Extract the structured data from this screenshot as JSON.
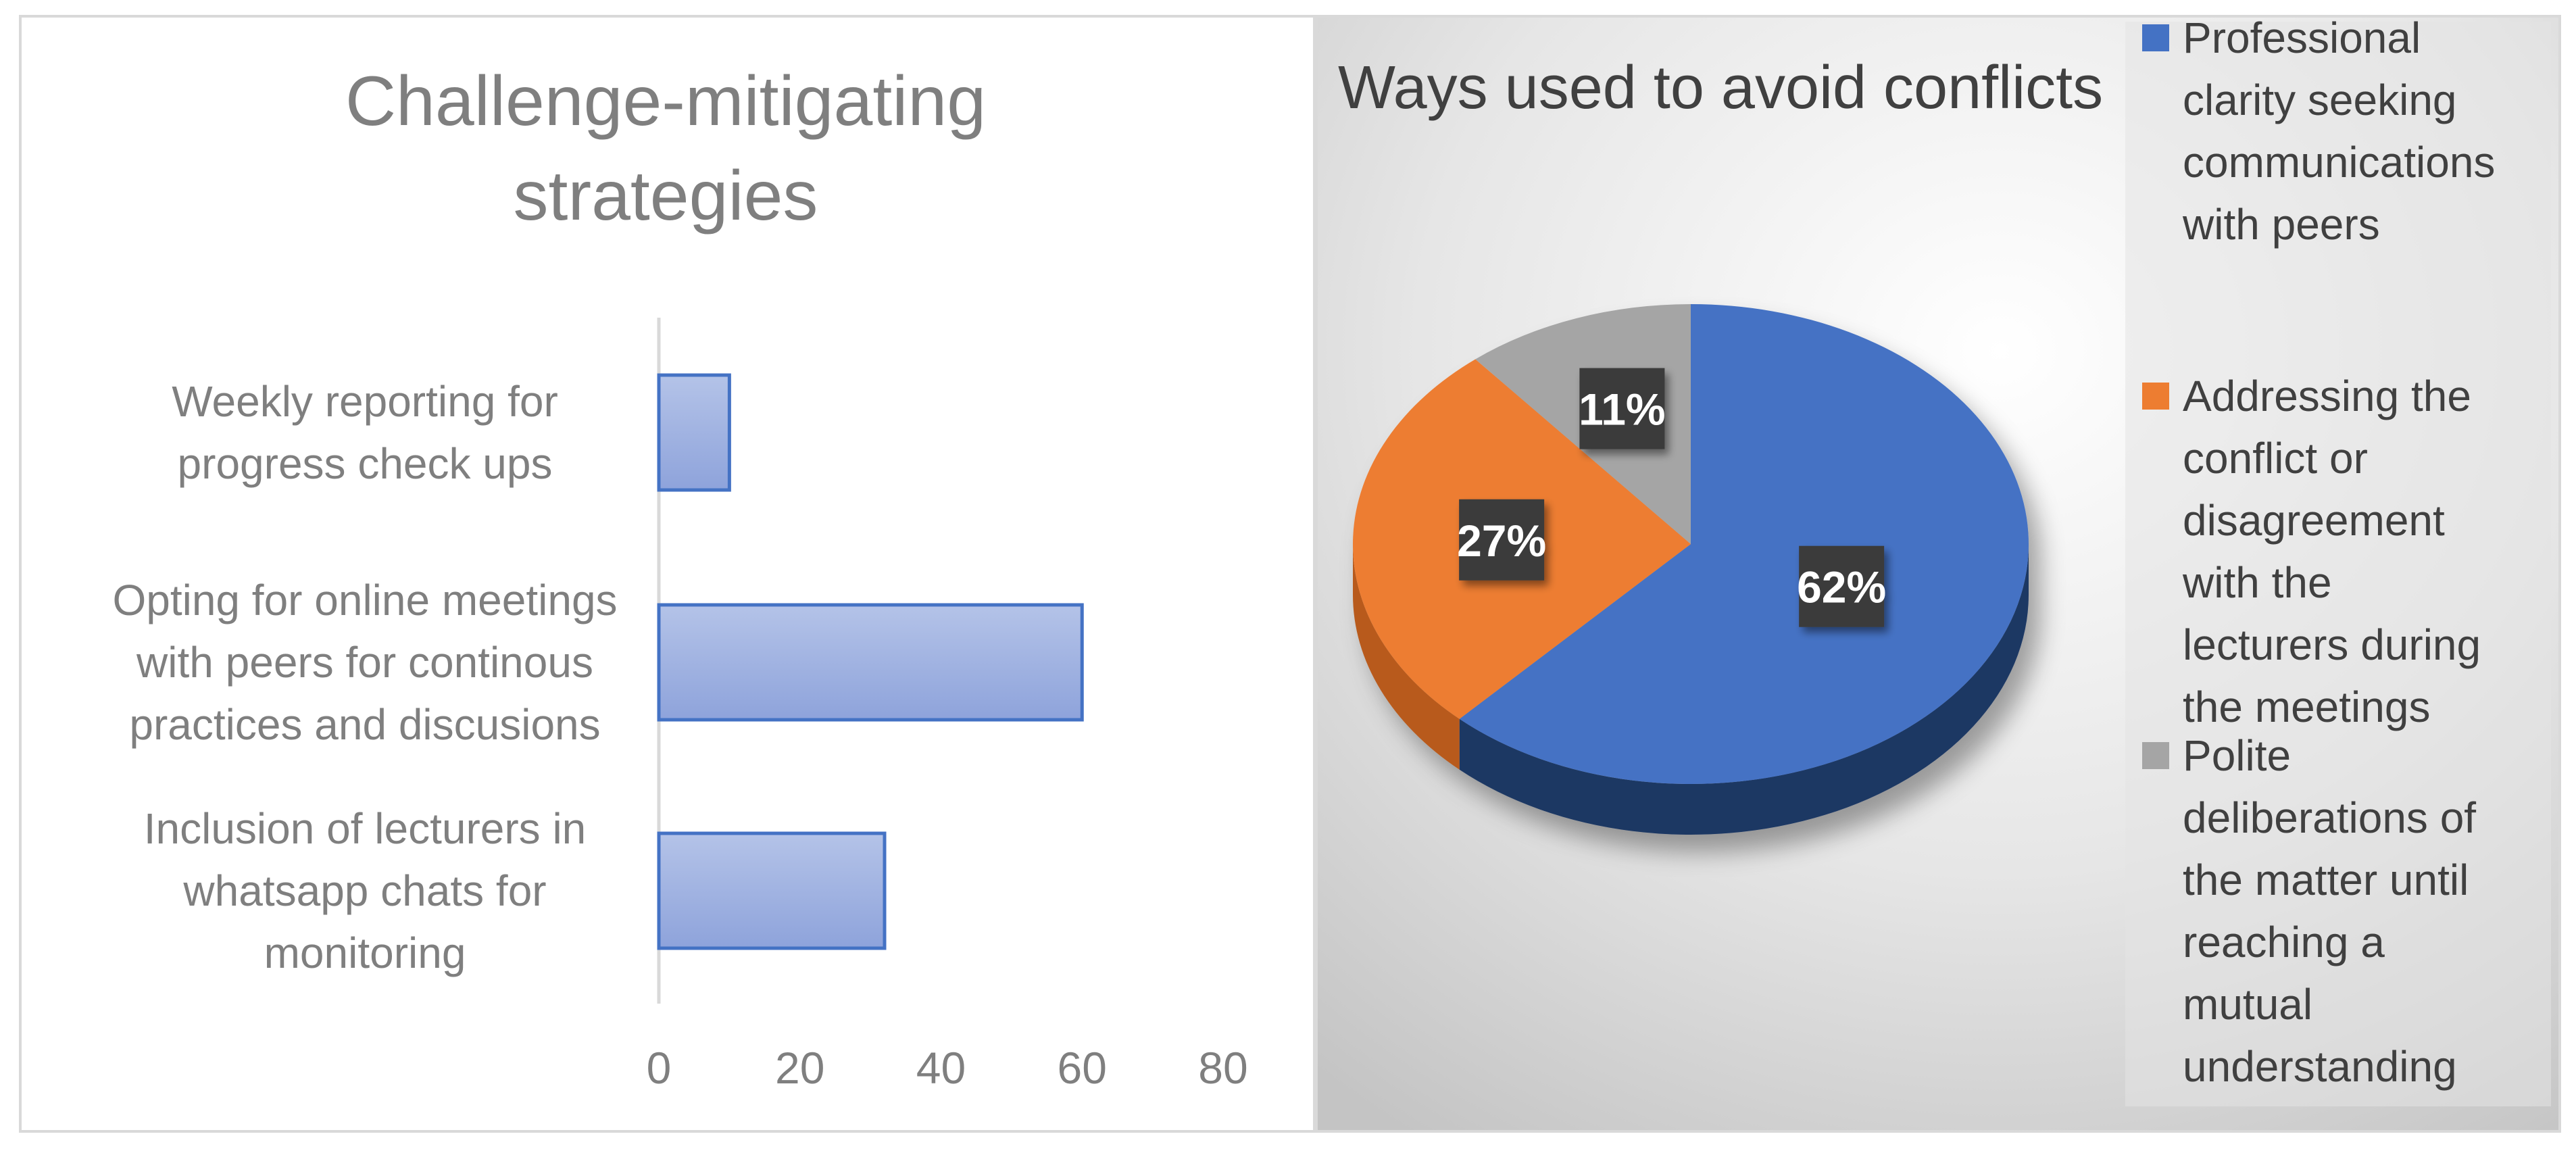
{
  "chart_data": [
    {
      "type": "bar",
      "orientation": "horizontal",
      "title": "Challenge-mitigating strategies",
      "title_lines": [
        "Challenge-mitigating",
        "strategies"
      ],
      "categories": [
        "Weekly reporting for progress check ups",
        "Opting for online meetings with peers for continous practices and discusions",
        "Inclusion of lecturers in whatsapp chats for monitoring"
      ],
      "category_lines": [
        [
          "Weekly reporting for",
          "progress check ups"
        ],
        [
          "Opting for online meetings",
          "with peers for continous",
          "practices and discusions"
        ],
        [
          "Inclusion of lecturers in",
          "whatsapp chats for",
          "monitoring"
        ]
      ],
      "values": [
        10,
        60,
        32
      ],
      "xlim": [
        0,
        80
      ],
      "xticks": [
        "0",
        "20",
        "40",
        "60",
        "80"
      ],
      "grid": false,
      "colors": {
        "fill_top": "#b4c3e8",
        "fill_bottom": "#8ea3db",
        "stroke": "#4472c4",
        "text": "#7f7f7f",
        "title": "#7f7f7f"
      }
    },
    {
      "type": "pie",
      "style": "3d",
      "title": "Ways used to avoid conflicts",
      "labels": [
        "Professional clarity seeking communications with peers",
        "Addressing the conflict or disagreement with the lecturers during the meetings",
        "Polite deliberations of the matter until reaching a mutual understanding"
      ],
      "legend_lines": [
        [
          "Professional",
          "clarity seeking",
          "communications",
          "with peers"
        ],
        [
          "Addressing the",
          "conflict or",
          "disagreement",
          "with the",
          "lecturers during",
          "the meetings"
        ],
        [
          "Polite",
          "deliberations of",
          "the matter until",
          "reaching a",
          "mutual",
          "understanding"
        ]
      ],
      "values": [
        62,
        27,
        11
      ],
      "data_labels": [
        "62%",
        "27%",
        "11%"
      ],
      "legend_position": "right",
      "colors": [
        "#4472c4",
        "#ed7d31",
        "#a5a5a5"
      ],
      "side_colors": [
        "#1f3864",
        "#b85a1b",
        "#7a7a7a"
      ],
      "label_box_color": "#3a3a3a",
      "title_color": "#404040"
    }
  ]
}
